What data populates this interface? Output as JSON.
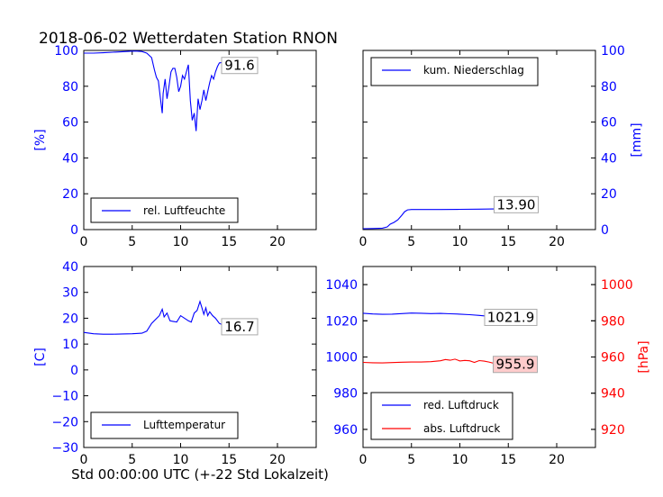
{
  "figure": {
    "title": "2018-06-02 Wetterdaten Station RNON",
    "xlabel": "Std 00:00:00 UTC (+-22 Std Lokalzeit)"
  },
  "colors": {
    "blue": "#0000ff",
    "red": "#ff0000",
    "black": "#000000",
    "label_bg": "#ffcccc"
  },
  "chart_data": [
    {
      "id": "humidity",
      "type": "line",
      "xlim": [
        0,
        24
      ],
      "ylim": [
        0,
        100
      ],
      "xticks": [
        0,
        5,
        10,
        15,
        20
      ],
      "yticks": [
        0,
        20,
        40,
        60,
        80,
        100
      ],
      "ylabel": "[%]",
      "legend": "lower-left",
      "series": [
        {
          "name": "rel. Luftfeuchte",
          "color": "#0000ff",
          "x": [
            0,
            1,
            2,
            3,
            4,
            5,
            5.5,
            6,
            6.5,
            7,
            7.3,
            7.5,
            7.7,
            7.9,
            8.1,
            8.2,
            8.4,
            8.6,
            8.8,
            9.0,
            9.2,
            9.4,
            9.6,
            9.8,
            10.0,
            10.2,
            10.4,
            10.6,
            10.8,
            11.0,
            11.2,
            11.4,
            11.6,
            11.8,
            12.0,
            12.2,
            12.4,
            12.6,
            12.8,
            13.0,
            13.2,
            13.4,
            13.6,
            13.8,
            14.0,
            14.5,
            15,
            15.5,
            16,
            16.5,
            17,
            17.5
          ],
          "y": [
            98.5,
            98.5,
            98.7,
            99,
            99.3,
            99.6,
            99.6,
            99.4,
            98.5,
            96,
            89,
            85,
            83,
            74,
            65,
            76,
            84,
            73,
            80,
            88,
            90,
            90,
            85,
            77,
            80,
            86,
            84,
            88,
            92,
            72,
            61,
            65,
            55,
            73,
            67,
            72,
            78,
            72,
            77,
            82,
            86,
            84,
            88,
            91,
            93,
            93.5,
            93,
            92.5,
            92.2,
            91.9,
            91.7,
            91.6
          ]
        }
      ],
      "value_label": "91.6"
    },
    {
      "id": "precip",
      "type": "line",
      "xlim": [
        0,
        24
      ],
      "ylim": [
        0,
        100
      ],
      "xticks": [
        0,
        5,
        10,
        15,
        20
      ],
      "yticks": [
        0,
        20,
        40,
        60,
        80,
        100
      ],
      "ylabel": "[mm]",
      "legend": "upper-left",
      "series": [
        {
          "name": "kum. Niederschlag",
          "color": "#0000ff",
          "x": [
            0,
            1,
            2,
            2.5,
            2.8,
            3.2,
            3.6,
            4.0,
            4.3,
            4.6,
            5.0,
            8,
            10,
            12,
            13.5,
            14,
            14.5,
            15,
            16,
            17,
            17.5
          ],
          "y": [
            0.5,
            0.6,
            0.8,
            1.5,
            3,
            4,
            5.5,
            8,
            10,
            11,
            11.2,
            11.2,
            11.3,
            11.4,
            11.5,
            12.5,
            13.5,
            13.9,
            13.9,
            13.9,
            13.9
          ]
        }
      ],
      "value_label": "13.90"
    },
    {
      "id": "temperature",
      "type": "line",
      "xlim": [
        0,
        24
      ],
      "ylim": [
        -30,
        40
      ],
      "xticks": [
        0,
        5,
        10,
        15,
        20
      ],
      "yticks": [
        -30,
        -20,
        -10,
        0,
        10,
        20,
        30,
        40
      ],
      "ylabel": "[C]",
      "legend": "lower-left",
      "series": [
        {
          "name": "Lufttemperatur",
          "color": "#0000ff",
          "x": [
            0,
            1,
            2,
            3,
            4,
            5,
            6,
            6.5,
            7,
            7.4,
            7.8,
            8.1,
            8.3,
            8.6,
            8.9,
            9.2,
            9.6,
            10.0,
            10.4,
            10.8,
            11.1,
            11.4,
            11.7,
            12.0,
            12.2,
            12.4,
            12.6,
            12.8,
            13.0,
            13.3,
            13.6,
            14.0,
            14.5,
            15,
            16,
            17,
            17.5
          ],
          "y": [
            14.5,
            14,
            13.8,
            13.8,
            13.9,
            14,
            14.2,
            15,
            18,
            19.5,
            21,
            23.5,
            20.5,
            22,
            19,
            18.8,
            18.5,
            21,
            20,
            19,
            18.5,
            22,
            23,
            26.5,
            24,
            21.5,
            24,
            21,
            22.5,
            21,
            20,
            18,
            17.2,
            16.8,
            16.7,
            16.7,
            16.7
          ]
        }
      ],
      "value_label": "16.7"
    },
    {
      "id": "pressure",
      "type": "line",
      "xlim": [
        0,
        24
      ],
      "ylim": [
        950,
        1050
      ],
      "ylim_right": [
        910,
        1010
      ],
      "xticks": [
        0,
        5,
        10,
        15,
        20
      ],
      "yticks": [
        960,
        980,
        1000,
        1020,
        1040
      ],
      "yticks_right": [
        920,
        940,
        960,
        980,
        1000
      ],
      "ylabel_right": "[hPa]",
      "legend": "lower-left",
      "series": [
        {
          "name": "red. Luftdruck",
          "color": "#0000ff",
          "axis": "left",
          "x": [
            0,
            1,
            2,
            3,
            4,
            5,
            6,
            7,
            8,
            9,
            10,
            11,
            12,
            13,
            14,
            15,
            16,
            17,
            17.5
          ],
          "y": [
            1024.2,
            1023.8,
            1023.6,
            1023.7,
            1024.0,
            1024.3,
            1024.2,
            1024.0,
            1024.1,
            1023.9,
            1023.7,
            1023.4,
            1023.0,
            1022.5,
            1022.2,
            1022.0,
            1021.9,
            1021.9,
            1021.9
          ]
        },
        {
          "name": "abs. Luftdruck",
          "color": "#ff0000",
          "axis": "right",
          "x": [
            0,
            1,
            2,
            3,
            4,
            5,
            6,
            7,
            8,
            8.5,
            9,
            9.5,
            10,
            10.5,
            11,
            11.5,
            12,
            12.5,
            13,
            13.5,
            14,
            15,
            16,
            17,
            17.5
          ],
          "y": [
            957.0,
            956.8,
            956.7,
            956.9,
            957.1,
            957.2,
            957.2,
            957.4,
            957.9,
            958.6,
            958.2,
            958.8,
            957.8,
            958.1,
            957.9,
            957.0,
            958.0,
            957.7,
            957.2,
            956.5,
            956.0,
            955.9,
            955.9,
            955.9,
            955.9
          ]
        }
      ],
      "value_labels": [
        "1021.9",
        "955.9"
      ]
    }
  ]
}
